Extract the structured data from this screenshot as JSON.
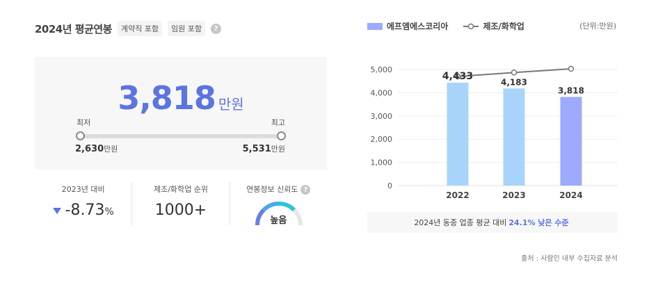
{
  "summary": {
    "title": "2024년 평균연봉",
    "tags": [
      "계약직 포함",
      "임원 포함"
    ],
    "help_glyph": "?",
    "average": "3,818",
    "unit": "만원",
    "min_label": "최저",
    "max_label": "최고",
    "min_value": "2,630",
    "max_value": "5,531"
  },
  "stats": {
    "yoy_label": "2023년 대비",
    "yoy_value": "-8.73",
    "yoy_pct": "%",
    "rank_label": "제조/화학업 순위",
    "rank_value": "1000+",
    "reliability_label": "연봉정보 신뢰도",
    "reliability_value": "높음",
    "reliability_level": 0.75
  },
  "colors": {
    "accent": "#5b74e0",
    "bar_past": "#a8d4fb",
    "bar_current": "#9eaafc",
    "line": "#777777"
  },
  "chart_data": {
    "type": "bar",
    "categories": [
      "2022",
      "2023",
      "2024"
    ],
    "series": [
      {
        "name": "에프엠에스코리아",
        "values": [
          4433,
          4183,
          3818
        ],
        "labels": [
          "4,433",
          "4,183",
          "3,818"
        ]
      },
      {
        "name": "제조/화학업",
        "type": "line",
        "values": [
          4700,
          4870,
          5030
        ]
      }
    ],
    "yticks": [
      "0",
      "1,000",
      "2,000",
      "3,000",
      "4,000",
      "5,000"
    ],
    "ylim": [
      0,
      5000
    ],
    "legend_position": "top-left",
    "unit_note": "(단위:만원)"
  },
  "footer": {
    "prefix": "2024년 동종 업종 평균 대비",
    "highlight": "24.1% 낮은 수준",
    "source": "출처 : 사람인 내부 수집자료 분석"
  }
}
